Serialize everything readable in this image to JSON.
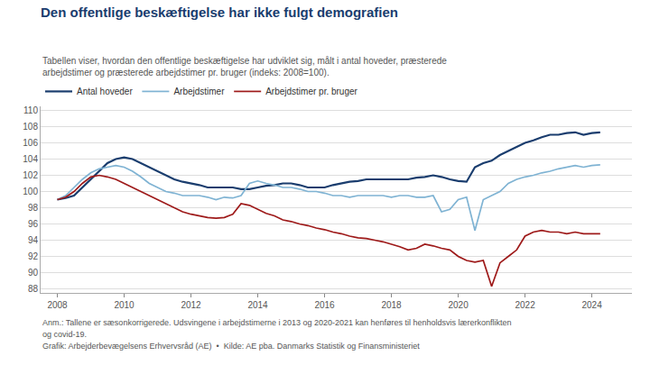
{
  "chart_data": {
    "type": "line",
    "title": "Den offentlige beskæftigelse har ikke fulgt demografien",
    "subtitle": "Tabellen viser, hvordan den offentlige beskæftigelse har udviklet sig, målt i antal hoveder, præsterede\narbejdstimer og præsterede arbejdstimer pr. bruger (indeks: 2008=100).",
    "annotations": [
      "Anm.: Tallene er sæsonkorrigerede. Udsvingene i arbejdstimerne i 2013 og 2020-2021 kan henføres til henholdsvis lærerkonflikten",
      "og covid-19.",
      "Grafik: Arbejderbevægelsens Erhvervsråd (AE)  •  Kilde: AE pba. Danmarks Statistik og Finansministeriet"
    ],
    "x": [
      2008.0,
      2008.25,
      2008.5,
      2008.75,
      2009.0,
      2009.25,
      2009.5,
      2009.75,
      2010.0,
      2010.25,
      2010.5,
      2010.75,
      2011.0,
      2011.25,
      2011.5,
      2011.75,
      2012.0,
      2012.25,
      2012.5,
      2012.75,
      2013.0,
      2013.25,
      2013.5,
      2013.75,
      2014.0,
      2014.25,
      2014.5,
      2014.75,
      2015.0,
      2015.25,
      2015.5,
      2015.75,
      2016.0,
      2016.25,
      2016.5,
      2016.75,
      2017.0,
      2017.25,
      2017.5,
      2017.75,
      2018.0,
      2018.25,
      2018.5,
      2018.75,
      2019.0,
      2019.25,
      2019.5,
      2019.75,
      2020.0,
      2020.25,
      2020.5,
      2020.75,
      2021.0,
      2021.25,
      2021.5,
      2021.75,
      2022.0,
      2022.25,
      2022.5,
      2022.75,
      2023.0,
      2023.25,
      2023.5,
      2023.75,
      2024.0,
      2024.25
    ],
    "series": [
      {
        "name": "Antal hoveder",
        "color": "#1a3d6e",
        "values": [
          99.0,
          99.2,
          99.5,
          100.5,
          101.5,
          102.5,
          103.5,
          104.0,
          104.2,
          104.0,
          103.5,
          103.0,
          102.5,
          102.0,
          101.5,
          101.2,
          101.0,
          100.8,
          100.5,
          100.5,
          100.5,
          100.5,
          100.3,
          100.3,
          100.5,
          100.7,
          100.8,
          101.0,
          101.0,
          100.8,
          100.5,
          100.5,
          100.5,
          100.8,
          101.0,
          101.2,
          101.3,
          101.5,
          101.5,
          101.5,
          101.5,
          101.5,
          101.5,
          101.7,
          101.8,
          102.0,
          101.8,
          101.5,
          101.3,
          101.2,
          103.0,
          103.5,
          103.8,
          104.5,
          105.0,
          105.5,
          106.0,
          106.3,
          106.7,
          107.0,
          107.0,
          107.2,
          107.3,
          107.0,
          107.2,
          107.3
        ]
      },
      {
        "name": "Arbejdstimer",
        "color": "#7fb3d3",
        "values": [
          99.0,
          99.5,
          100.5,
          101.5,
          102.3,
          102.8,
          103.0,
          103.2,
          103.0,
          102.5,
          101.8,
          101.0,
          100.5,
          100.0,
          99.8,
          99.5,
          99.5,
          99.5,
          99.3,
          99.0,
          99.3,
          99.2,
          99.5,
          101.0,
          101.3,
          101.0,
          100.8,
          100.5,
          100.5,
          100.3,
          100.0,
          100.0,
          99.8,
          99.5,
          99.5,
          99.3,
          99.5,
          99.5,
          99.5,
          99.5,
          99.3,
          99.5,
          99.5,
          99.3,
          99.3,
          99.5,
          97.5,
          97.8,
          99.0,
          99.3,
          95.2,
          99.0,
          99.5,
          100.0,
          101.0,
          101.5,
          101.8,
          102.0,
          102.3,
          102.5,
          102.8,
          103.0,
          103.2,
          103.0,
          103.2,
          103.3
        ]
      },
      {
        "name": "Arbejdstimer pr. bruger",
        "color": "#9e1a1a",
        "values": [
          99.0,
          99.3,
          100.0,
          101.0,
          101.8,
          102.0,
          101.8,
          101.5,
          101.0,
          100.5,
          100.0,
          99.5,
          99.0,
          98.5,
          98.0,
          97.5,
          97.2,
          97.0,
          96.8,
          96.7,
          96.8,
          97.2,
          98.5,
          98.3,
          97.8,
          97.3,
          97.0,
          96.5,
          96.3,
          96.0,
          95.8,
          95.5,
          95.3,
          95.0,
          94.8,
          94.5,
          94.3,
          94.2,
          94.0,
          93.8,
          93.5,
          93.2,
          92.8,
          93.0,
          93.5,
          93.3,
          93.0,
          92.8,
          92.0,
          91.5,
          91.3,
          91.5,
          88.3,
          91.2,
          92.0,
          92.8,
          94.5,
          95.0,
          95.2,
          95.0,
          95.0,
          94.8,
          95.0,
          94.8,
          94.8,
          94.8
        ]
      }
    ],
    "xlim": [
      2007.5,
      2025.2
    ],
    "xticks": [
      2008,
      2010,
      2012,
      2014,
      2016,
      2018,
      2020,
      2022,
      2024
    ],
    "ylim": [
      87.5,
      110.5
    ],
    "yticks": [
      88,
      90,
      92,
      94,
      96,
      98,
      100,
      102,
      104,
      106,
      108,
      110
    ],
    "grid": true,
    "legend": "upper left"
  }
}
